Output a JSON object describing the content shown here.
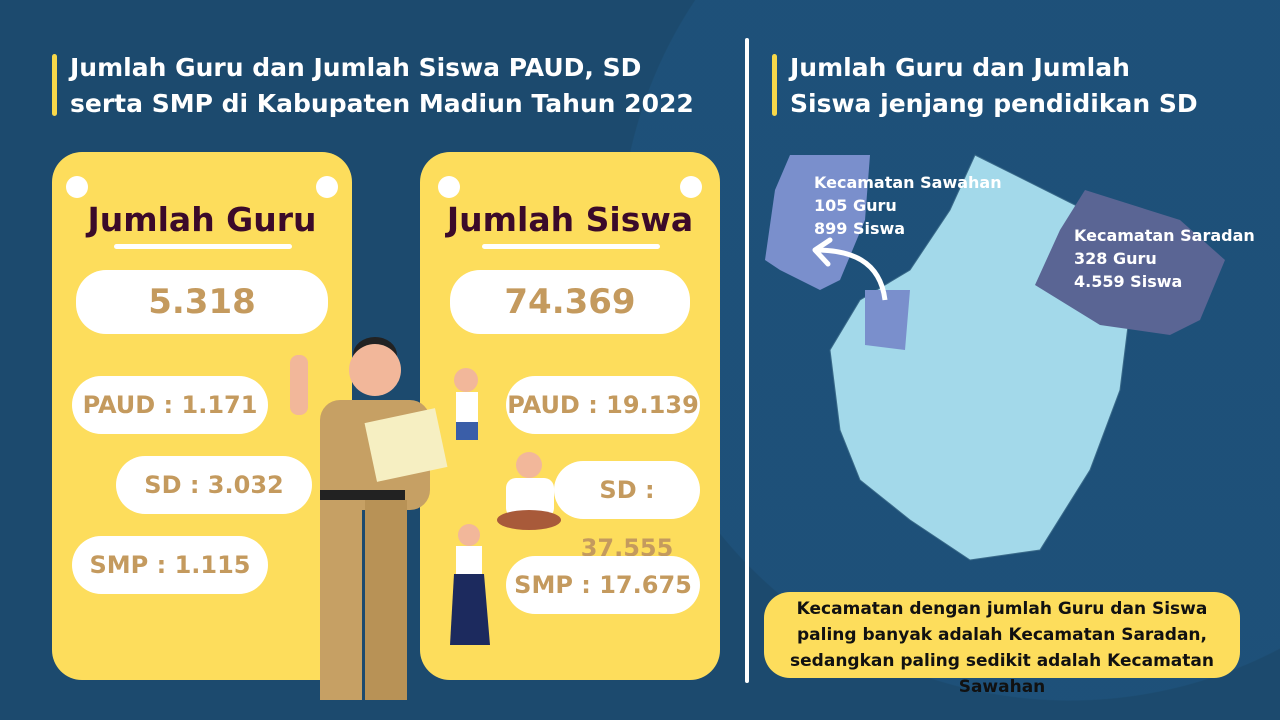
{
  "left": {
    "title": "Jumlah Guru dan Jumlah Siswa PAUD, SD serta SMP di Kabupaten Madiun Tahun 2022",
    "guru": {
      "heading": "Jumlah Guru",
      "total": "5.318",
      "paud": "PAUD : 1.171",
      "sd": "SD : 3.032",
      "smp": "SMP : 1.115"
    },
    "siswa": {
      "heading": "Jumlah Siswa",
      "total": "74.369",
      "paud": "PAUD : 19.139",
      "sd": "SD : 37.555",
      "smp": "SMP : 17.675"
    }
  },
  "right": {
    "title": "Jumlah Guru dan Jumlah Siswa jenjang pendidikan SD",
    "sawahan": {
      "name": "Kecamatan Sawahan",
      "guru": "105 Guru",
      "siswa": "899 Siswa"
    },
    "saradan": {
      "name": "Kecamatan Saradan",
      "guru": "328 Guru",
      "siswa": "4.559 Siswa"
    },
    "note": "Kecamatan dengan jumlah Guru dan Siswa paling banyak adalah Kecamatan Saradan, sedangkan paling sedikit adalah Kecamatan Sawahan"
  },
  "colors": {
    "background": "#1c4a6e",
    "card": "#fddd5c",
    "heading": "#3b0a2a",
    "number": "#c49a5e",
    "map": "#a3d9ea",
    "sawahan": "#7a8fcc",
    "saradan": "#5a6594"
  }
}
